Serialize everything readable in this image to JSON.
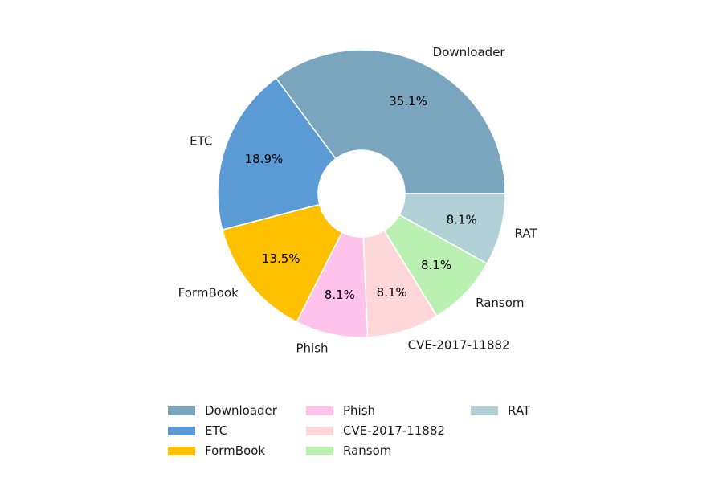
{
  "chart_data": {
    "type": "pie",
    "donut": true,
    "categories": [
      "Downloader",
      "ETC",
      "FormBook",
      "Phish",
      "CVE-2017-11882",
      "Ransom",
      "RAT"
    ],
    "values": [
      35.1,
      18.9,
      13.5,
      8.1,
      8.1,
      8.1,
      8.1
    ],
    "value_labels": [
      "35.1%",
      "18.9%",
      "13.5%",
      "8.1%",
      "8.1%",
      "8.1%",
      "8.1%"
    ],
    "colors": [
      "#79a5bf",
      "#5b9bd5",
      "#ffc000",
      "#ffc3ec",
      "#ffd7d9",
      "#baf0b1",
      "#b1d1d6"
    ],
    "start_angle_deg": 0,
    "direction": "counterclockwise",
    "legend": {
      "placement": "bottom",
      "columns": 3,
      "entries": [
        "Downloader",
        "ETC",
        "FormBook",
        "Phish",
        "CVE-2017-11882",
        "Ransom",
        "RAT"
      ]
    }
  }
}
